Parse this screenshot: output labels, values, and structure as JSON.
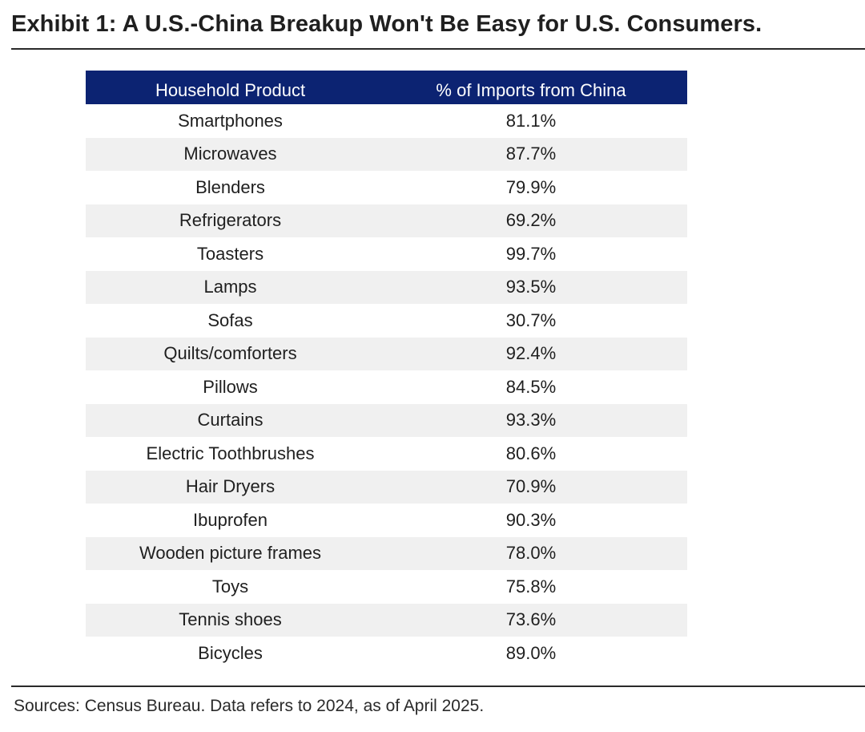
{
  "title": "Exhibit 1: A U.S.-China Breakup Won't Be Easy for U.S. Consumers.",
  "source": "Sources: Census Bureau. Data refers to 2024, as of April 2025.",
  "colors": {
    "header_bg": "#0c2372",
    "header_text": "#ffffff",
    "row_shade": "#f0f0f0"
  },
  "chart_data": {
    "type": "table",
    "title": "Exhibit 1: A U.S.-China Breakup Won't Be Easy for U.S. Consumers.",
    "columns": [
      "Household Product",
      "% of Imports from China"
    ],
    "rows": [
      [
        "Smartphones",
        "81.1%"
      ],
      [
        "Microwaves",
        "87.7%"
      ],
      [
        "Blenders",
        "79.9%"
      ],
      [
        "Refrigerators",
        "69.2%"
      ],
      [
        "Toasters",
        "99.7%"
      ],
      [
        "Lamps",
        "93.5%"
      ],
      [
        "Sofas",
        "30.7%"
      ],
      [
        "Quilts/comforters",
        "92.4%"
      ],
      [
        "Pillows",
        "84.5%"
      ],
      [
        "Curtains",
        "93.3%"
      ],
      [
        "Electric Toothbrushes",
        "80.6%"
      ],
      [
        "Hair Dryers",
        "70.9%"
      ],
      [
        "Ibuprofen",
        "90.3%"
      ],
      [
        "Wooden picture frames",
        "78.0%"
      ],
      [
        "Toys",
        "75.8%"
      ],
      [
        "Tennis shoes",
        "73.6%"
      ],
      [
        "Bicycles",
        "89.0%"
      ]
    ]
  }
}
